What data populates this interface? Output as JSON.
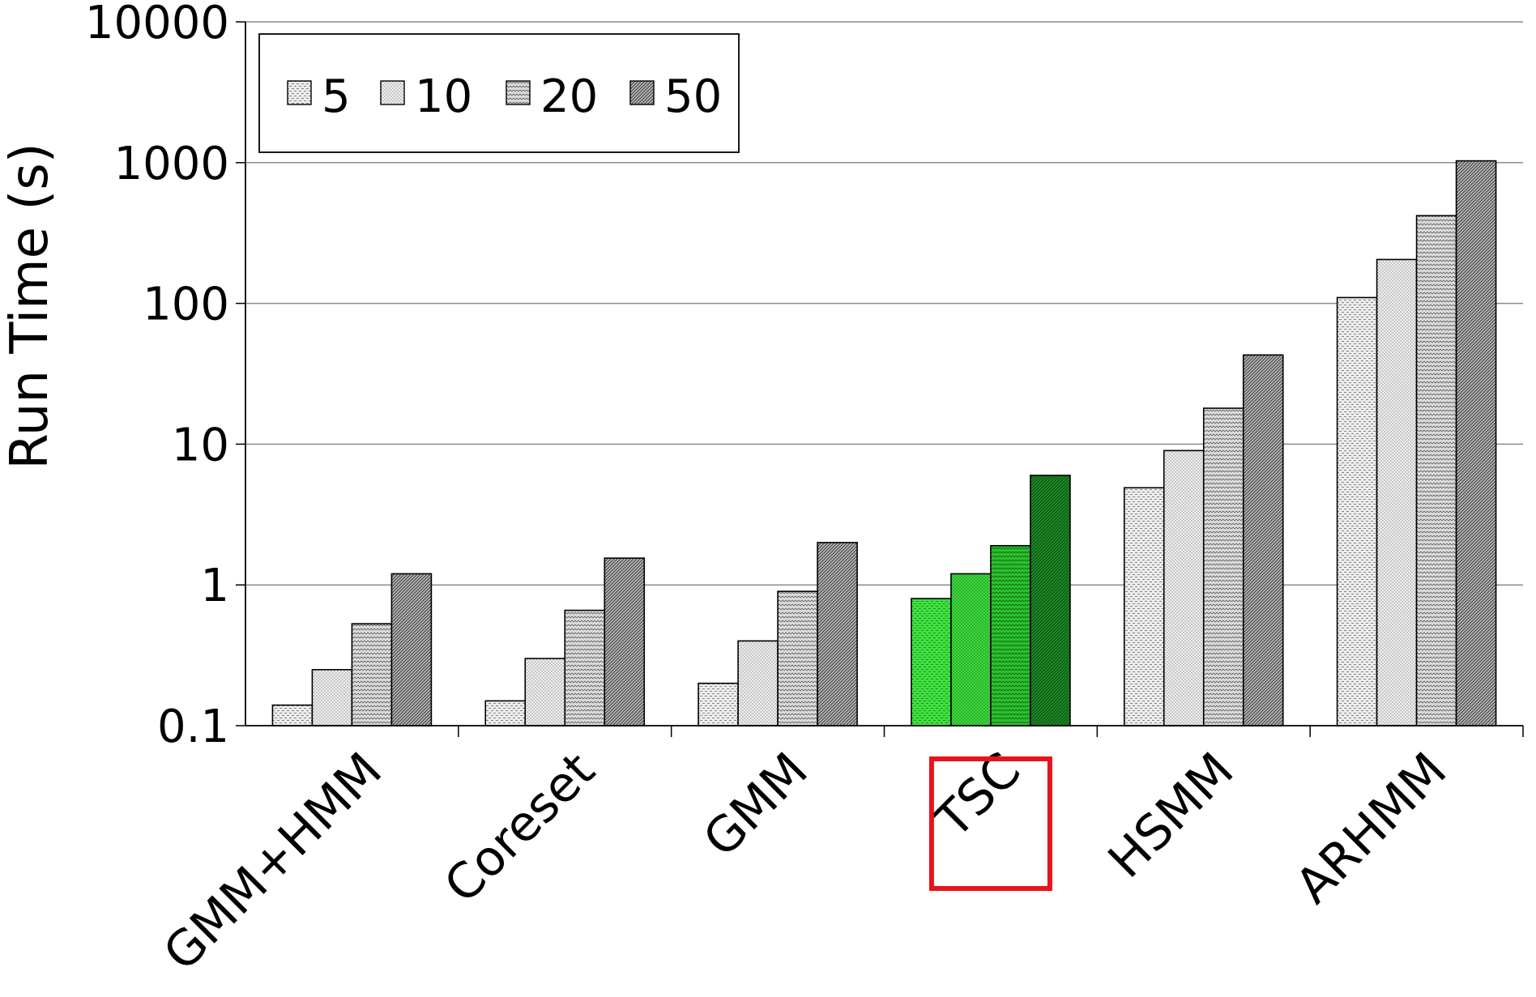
{
  "chart_data": {
    "type": "bar",
    "title": "",
    "xlabel": "",
    "ylabel": "Run Time (s)",
    "yscale": "log",
    "ylim": [
      0.1,
      10000
    ],
    "yticks": [
      "0.1",
      "1",
      "10",
      "100",
      "1000",
      "10000"
    ],
    "grid": "horizontal major gridlines on",
    "legend": "top-left",
    "categories": [
      "GMM+HMM",
      "Coreset",
      "GMM",
      "TSC",
      "HSMM",
      "ARHMM"
    ],
    "highlighted_category": "TSC",
    "highlight_box_color": "#e8141b",
    "highlight_fill_colors": [
      "#3fe040",
      "#3ad83b",
      "#2bc330",
      "#1e8f26"
    ],
    "series": [
      {
        "name": "5",
        "values": [
          0.14,
          0.15,
          0.2,
          0.8,
          4.9,
          110
        ]
      },
      {
        "name": "10",
        "values": [
          0.25,
          0.3,
          0.4,
          1.2,
          9.0,
          205
        ]
      },
      {
        "name": "20",
        "values": [
          0.53,
          0.66,
          0.9,
          1.9,
          18,
          420
        ]
      },
      {
        "name": "50",
        "values": [
          1.2,
          1.55,
          2.0,
          6.0,
          43,
          1030
        ]
      }
    ]
  }
}
